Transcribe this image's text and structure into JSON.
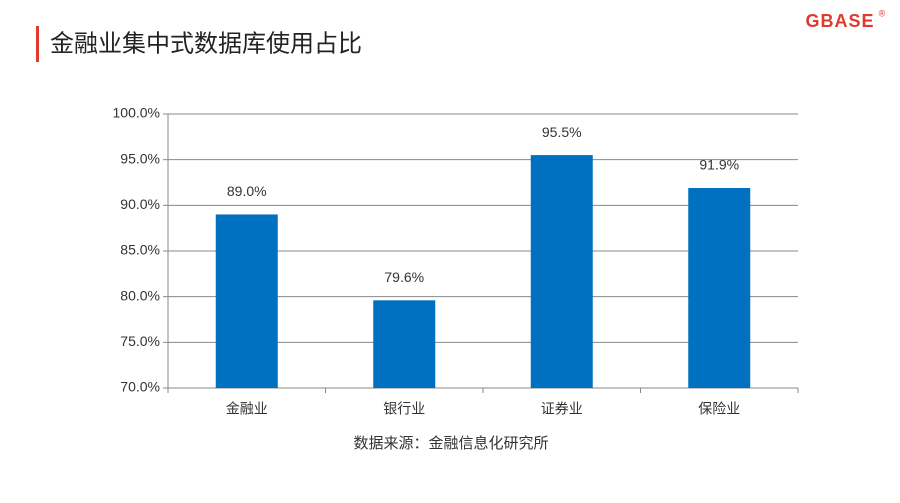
{
  "logo": {
    "text": "GBASE",
    "mark": "®"
  },
  "chart_data": {
    "type": "bar",
    "title": "金融业集中式数据库使用占比",
    "categories": [
      "金融业",
      "银行业",
      "证券业",
      "保险业"
    ],
    "values": [
      89.0,
      79.6,
      95.5,
      91.9
    ],
    "value_labels": [
      "89.0%",
      "79.6%",
      "95.5%",
      "91.9%"
    ],
    "color": "#0070c0",
    "ylim": [
      70,
      100
    ],
    "yticks": [
      {
        "value": 70,
        "label": "70.0%"
      },
      {
        "value": 75,
        "label": "75.0%"
      },
      {
        "value": 80,
        "label": "80.0%"
      },
      {
        "value": 85,
        "label": "85.0%"
      },
      {
        "value": 90,
        "label": "90.0%"
      },
      {
        "value": 95,
        "label": "95.0%"
      },
      {
        "value": 100,
        "label": "100.0%"
      }
    ],
    "grid": true,
    "source": "数据来源：金融信息化研究所"
  }
}
